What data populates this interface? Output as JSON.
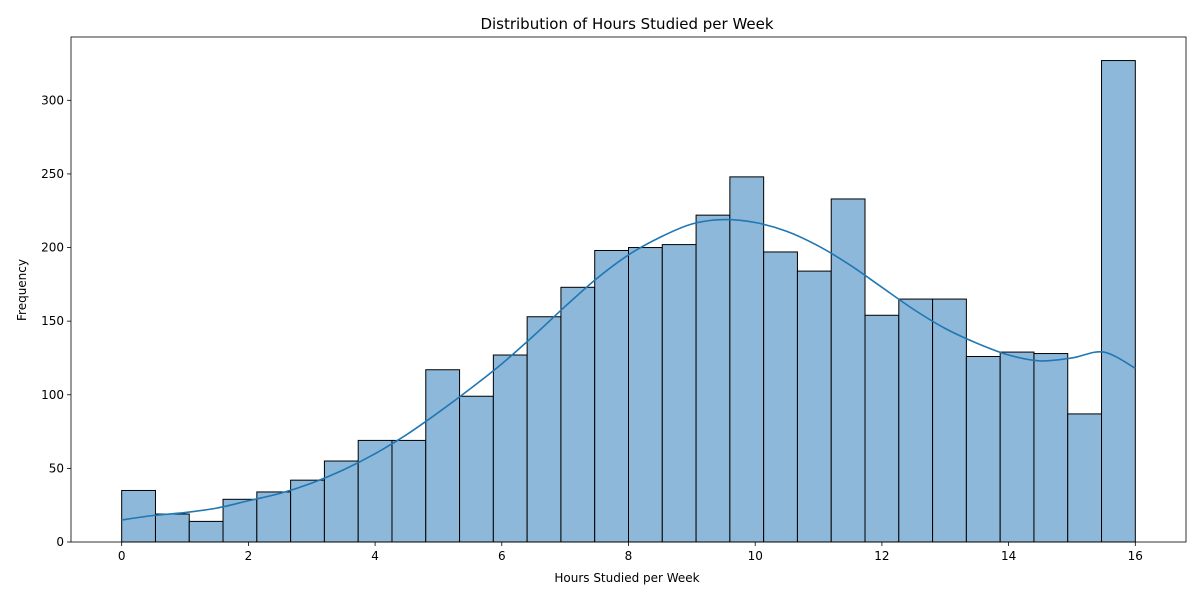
{
  "chart_data": {
    "type": "bar",
    "title": "Distribution of Hours Studied per Week",
    "xlabel": "Hours Studied per Week",
    "ylabel": "Frequency",
    "xlim": [
      -0.8,
      16.8
    ],
    "ylim": [
      0,
      343
    ],
    "xticks": [
      0,
      2,
      4,
      6,
      8,
      10,
      12,
      14,
      16
    ],
    "yticks": [
      0,
      50,
      100,
      150,
      200,
      250,
      300
    ],
    "bin_range": [
      0,
      16
    ],
    "bin_count": 30,
    "values": [
      35,
      19,
      14,
      29,
      34,
      42,
      55,
      69,
      69,
      117,
      99,
      127,
      153,
      173,
      198,
      200,
      202,
      222,
      248,
      197,
      184,
      233,
      154,
      165,
      165,
      126,
      129,
      128,
      87,
      327
    ],
    "kde": {
      "x": [
        0,
        0.5,
        1,
        1.5,
        2,
        2.5,
        3,
        3.5,
        4,
        4.5,
        5,
        5.5,
        6,
        6.5,
        7,
        7.5,
        8,
        8.5,
        9,
        9.5,
        10,
        10.5,
        11,
        11.5,
        12,
        12.5,
        13,
        13.5,
        14,
        14.5,
        15,
        15.5,
        16
      ],
      "y": [
        15,
        18,
        20,
        23,
        28,
        33,
        40,
        49,
        60,
        73,
        88,
        104,
        121,
        140,
        160,
        179,
        195,
        207,
        216,
        219,
        217,
        211,
        201,
        188,
        173,
        158,
        145,
        135,
        127,
        123,
        125,
        129,
        118
      ]
    },
    "bar_color": "#8db8da",
    "bar_edge": "#000000",
    "line_color": "#1f77b4",
    "grid": false,
    "legend": "none"
  }
}
